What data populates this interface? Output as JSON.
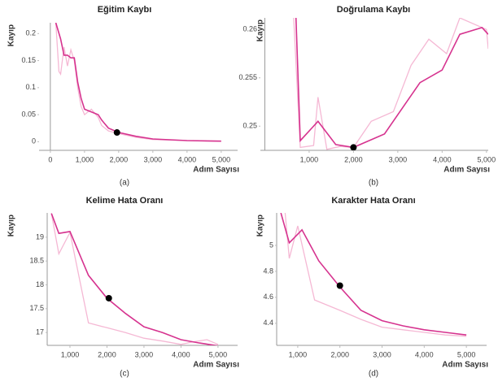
{
  "chart_data": [
    {
      "type": "line",
      "title": "Eğitim Kaybı",
      "ylabel": "Kayıp",
      "xlabel": "Adım Sayısı",
      "caption": "(a)",
      "xlim": [
        -330,
        5480
      ],
      "ylim": [
        -0.016,
        0.22
      ],
      "xticks": [
        0,
        {
          "value": 1000,
          "label": "1,000"
        },
        {
          "value": 2000,
          "label": "2,000"
        },
        {
          "value": 3000,
          "label": "3,000"
        },
        {
          "value": 4000,
          "label": "4,000"
        },
        {
          "value": 5000,
          "label": "5,000"
        }
      ],
      "yticks": [
        0,
        0.05,
        0.1,
        0.15,
        0.2
      ],
      "series": [
        {
          "color": "#f5b8d4",
          "x": [
            160,
            250,
            300,
            400,
            500,
            600,
            700,
            800,
            900,
            1000,
            1200,
            1400,
            1500,
            1700,
            2000,
            2500,
            3000,
            4000,
            5000
          ],
          "values": [
            0.22,
            0.13,
            0.125,
            0.175,
            0.14,
            0.17,
            0.15,
            0.1,
            0.065,
            0.05,
            0.06,
            0.045,
            0.03,
            0.02,
            0.015,
            0.008,
            0.004,
            0.002,
            0.001
          ]
        },
        {
          "color": "#d6338f",
          "x": [
            160,
            300,
            400,
            500,
            600,
            700,
            800,
            900,
            1000,
            1200,
            1400,
            1500,
            1700,
            2000,
            2500,
            3000,
            4000,
            5000
          ],
          "values": [
            0.22,
            0.19,
            0.16,
            0.16,
            0.155,
            0.155,
            0.11,
            0.08,
            0.06,
            0.055,
            0.05,
            0.04,
            0.025,
            0.017,
            0.01,
            0.005,
            0.002,
            0.001
          ]
        }
      ],
      "marker": {
        "x": 1950,
        "y": 0.017,
        "color": "#000000"
      }
    },
    {
      "type": "line",
      "title": "Doğrulama Kaybı",
      "ylabel": "Kayıp",
      "xlabel": "Adım Sayısı",
      "caption": "(b)",
      "xlim": [
        -100,
        5040
      ],
      "ylim": [
        0.2475,
        0.2612
      ],
      "xticks": [
        {
          "value": 1000,
          "label": "1,000"
        },
        {
          "value": 2000,
          "label": "2,000"
        },
        {
          "value": 3000,
          "label": "3,000"
        },
        {
          "value": 4000,
          "label": "4,000"
        },
        {
          "value": 5000,
          "label": "5,000"
        }
      ],
      "yticks": [
        0.25,
        0.255,
        0.26
      ],
      "series": [
        {
          "color": "#f5b8d4",
          "x": [
            650,
            800,
            1100,
            1200,
            1400,
            1700,
            2000,
            2400,
            2900,
            3300,
            3700,
            4100,
            4400,
            5000,
            5040
          ],
          "values": [
            0.2612,
            0.2478,
            0.248,
            0.253,
            0.2476,
            0.2479,
            0.2478,
            0.2505,
            0.2515,
            0.2563,
            0.259,
            0.2575,
            0.2612,
            0.26,
            0.258
          ]
        },
        {
          "color": "#d6338f",
          "x": [
            700,
            800,
            1200,
            1600,
            2000,
            2700,
            3500,
            4000,
            4400,
            4900,
            5040
          ],
          "values": [
            0.2615,
            0.2485,
            0.2505,
            0.2481,
            0.2478,
            0.2492,
            0.2545,
            0.2558,
            0.2595,
            0.2602,
            0.2595
          ]
        }
      ],
      "marker": {
        "x": 2000,
        "y": 0.2478,
        "color": "#000000"
      }
    },
    {
      "type": "line",
      "title": "Kelime Hata Oranı",
      "ylabel": "Kayıp",
      "xlabel": "Adım Sayısı",
      "caption": "(c)",
      "xlim": [
        385,
        5530
      ],
      "ylim": [
        16.73,
        19.51
      ],
      "xticks": [
        {
          "value": 1000,
          "label": "1,000"
        },
        {
          "value": 2000,
          "label": "2,000"
        },
        {
          "value": 3000,
          "label": "3,000"
        },
        {
          "value": 4000,
          "label": "4,000"
        },
        {
          "value": 5000,
          "label": "5,000"
        }
      ],
      "yticks": [
        17,
        17.5,
        18,
        18.5,
        19
      ],
      "series": [
        {
          "color": "#f5b8d4",
          "x": [
            500,
            700,
            1000,
            1500,
            2000,
            2500,
            3000,
            3500,
            4000,
            4300,
            4700,
            5000
          ],
          "values": [
            19.5,
            18.65,
            19.1,
            17.2,
            17.1,
            17.0,
            16.88,
            16.82,
            16.75,
            16.8,
            16.85,
            16.75
          ]
        },
        {
          "color": "#d6338f",
          "x": [
            500,
            700,
            1000,
            1500,
            2000,
            2500,
            3000,
            3500,
            4000,
            4500,
            5000
          ],
          "values": [
            19.5,
            19.08,
            19.12,
            18.2,
            17.72,
            17.4,
            17.12,
            17.0,
            16.85,
            16.78,
            16.72
          ]
        }
      ],
      "marker": {
        "x": 2050,
        "y": 17.72,
        "color": "#000000"
      }
    },
    {
      "type": "line",
      "title": "Karakter Hata Oranı",
      "ylabel": "Kayıp",
      "xlabel": "Adım Sayısı",
      "caption": "(d)",
      "xlim": [
        500,
        5480
      ],
      "ylim": [
        4.23,
        5.25
      ],
      "xticks": [
        {
          "value": 1000,
          "label": "1,000"
        },
        {
          "value": 2000,
          "label": "2,000"
        },
        {
          "value": 3000,
          "label": "3,000"
        },
        {
          "value": 4000,
          "label": "4,000"
        },
        {
          "value": 5000,
          "label": "5,000"
        }
      ],
      "yticks": [
        4.4,
        4.6,
        4.8,
        5
      ],
      "series": [
        {
          "color": "#f5b8d4",
          "x": [
            700,
            800,
            1000,
            1400,
            2000,
            2500,
            3000,
            3500,
            4000,
            4500,
            5000
          ],
          "values": [
            5.25,
            4.9,
            5.15,
            4.58,
            4.5,
            4.43,
            4.37,
            4.35,
            4.33,
            4.31,
            4.3
          ]
        },
        {
          "color": "#d6338f",
          "x": [
            600,
            800,
            1100,
            1500,
            2000,
            2500,
            3000,
            3500,
            4000,
            4500,
            5000
          ],
          "values": [
            5.25,
            5.02,
            5.12,
            4.88,
            4.68,
            4.5,
            4.42,
            4.38,
            4.35,
            4.33,
            4.31
          ]
        }
      ],
      "marker": {
        "x": 2000,
        "y": 4.69,
        "color": "#000000"
      }
    }
  ]
}
